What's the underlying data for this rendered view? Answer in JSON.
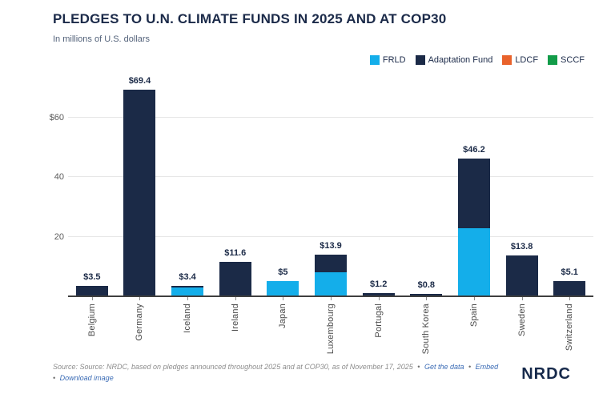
{
  "header": {
    "title": "PLEDGES TO U.N. CLIMATE FUNDS IN 2025 AND AT COP30",
    "subtitle": "In millions of U.S. dollars"
  },
  "legend": [
    {
      "label": "FRLD",
      "color": "#14aeea"
    },
    {
      "label": "Adaptation Fund",
      "color": "#1b2a47"
    },
    {
      "label": "LDCF",
      "color": "#e9622b"
    },
    {
      "label": "SCCF",
      "color": "#129c49"
    }
  ],
  "chart_data": {
    "type": "bar",
    "stacked": true,
    "title": "PLEDGES TO U.N. CLIMATE FUNDS IN 2025 AND AT COP30",
    "subtitle": "In millions of U.S. dollars",
    "xlabel": "",
    "ylabel": "In millions of U.S. dollars",
    "ylim": [
      0,
      74
    ],
    "grid": true,
    "legend_position": "top-right",
    "categories": [
      "Belgium",
      "Germany",
      "Iceland",
      "Ireland",
      "Japan",
      "Luxembourg",
      "Portugal",
      "South Korea",
      "Spain",
      "Sweden",
      "Switzerland"
    ],
    "series": [
      {
        "name": "FRLD",
        "color": "#14aeea",
        "values": [
          0,
          0,
          3.0,
          0,
          5,
          8.0,
          0,
          0,
          23.0,
          0,
          0
        ]
      },
      {
        "name": "Adaptation Fund",
        "color": "#1b2a47",
        "values": [
          3.5,
          69.4,
          0.4,
          11.6,
          0,
          5.9,
          1.2,
          0.8,
          23.2,
          13.8,
          5.1
        ]
      },
      {
        "name": "LDCF",
        "color": "#e9622b",
        "values": [
          0,
          0,
          0,
          0,
          0,
          0,
          0,
          0,
          0,
          0,
          0
        ]
      },
      {
        "name": "SCCF",
        "color": "#129c49",
        "values": [
          0,
          0,
          0,
          0,
          0,
          0,
          0,
          0,
          0,
          0,
          0
        ]
      }
    ],
    "totals": [
      3.5,
      69.4,
      3.4,
      11.6,
      5,
      13.9,
      1.2,
      0.8,
      46.2,
      13.8,
      5.1
    ],
    "value_labels": [
      "$3.5",
      "$69.4",
      "$3.4",
      "$11.6",
      "$5",
      "$13.9",
      "$1.2",
      "$0.8",
      "$46.2",
      "$13.8",
      "$5.1"
    ],
    "yticks": [
      {
        "label": "$60",
        "value": 60
      },
      {
        "label": "40",
        "value": 40
      },
      {
        "label": "20",
        "value": 20
      }
    ]
  },
  "footer": {
    "source_text": "Source: Source: NRDC, based on pledges announced throughout 2025 and at COP30, as of November 17, 2025",
    "separator": "•",
    "links": [
      "Get the data",
      "Embed",
      "Download image"
    ],
    "logo": "NRDC"
  }
}
